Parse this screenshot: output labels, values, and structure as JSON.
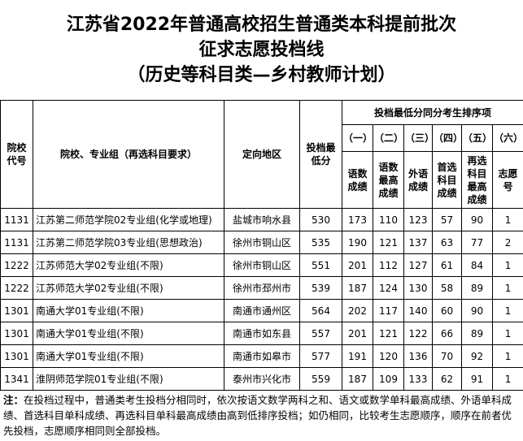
{
  "header": {
    "title_lines": [
      "江苏省2022年普通高校招生普通类本科提前批次",
      "征求志愿投档线",
      "（历史等科目类—乡村教师计划）"
    ]
  },
  "table": {
    "columns": {
      "code": "院校代号",
      "name": "院校、专业组（再选科目要求）",
      "region": "定向地区",
      "min_score": "投档最低分",
      "tie_group": "投档最低分同分考生排序项",
      "tie_items": [
        {
          "no": "（一）",
          "label": "语数成绩"
        },
        {
          "no": "（二）",
          "label": "语数最高成绩"
        },
        {
          "no": "（三）",
          "label": "外语成绩"
        },
        {
          "no": "（四）",
          "label": "首选科目成绩"
        },
        {
          "no": "（五）",
          "label": "再选科目最高成绩"
        },
        {
          "no": "（六）",
          "label": "志愿号"
        }
      ]
    },
    "rows": [
      [
        "1131",
        "江苏第二师范学院02专业组(化学或地理)",
        "盐城市响水县",
        530,
        173,
        110,
        123,
        57,
        90,
        1
      ],
      [
        "1131",
        "江苏第二师范学院03专业组(思想政治)",
        "徐州市铜山区",
        535,
        190,
        121,
        137,
        63,
        77,
        2
      ],
      [
        "1222",
        "江苏师范大学02专业组(不限)",
        "徐州市铜山区",
        551,
        201,
        112,
        127,
        61,
        84,
        1
      ],
      [
        "1222",
        "江苏师范大学02专业组(不限)",
        "徐州市邳州市",
        539,
        187,
        124,
        130,
        58,
        89,
        1
      ],
      [
        "1301",
        "南通大学01专业组(不限)",
        "南通市通州区",
        564,
        202,
        117,
        140,
        60,
        90,
        1
      ],
      [
        "1301",
        "南通大学01专业组(不限)",
        "南通市如东县",
        557,
        201,
        121,
        122,
        66,
        89,
        1
      ],
      [
        "1301",
        "南通大学01专业组(不限)",
        "南通市如皋市",
        577,
        191,
        120,
        136,
        70,
        92,
        1
      ],
      [
        "1341",
        "淮阴师范学院01专业组(不限)",
        "泰州市兴化市",
        559,
        187,
        109,
        133,
        62,
        91,
        1
      ]
    ]
  },
  "note": {
    "label": "注：",
    "text": "在投档过程中，普通类考生投档分相同时，依次按语文数学两科之和、语文或数学单科最高成绩、外语单科成绩、首选科目单科成绩、再选科目单科最高成绩由高到低排序投档；如仍相同，比较考生志愿顺序，顺序在前者优先投档，志愿顺序相同则全部投档。"
  }
}
